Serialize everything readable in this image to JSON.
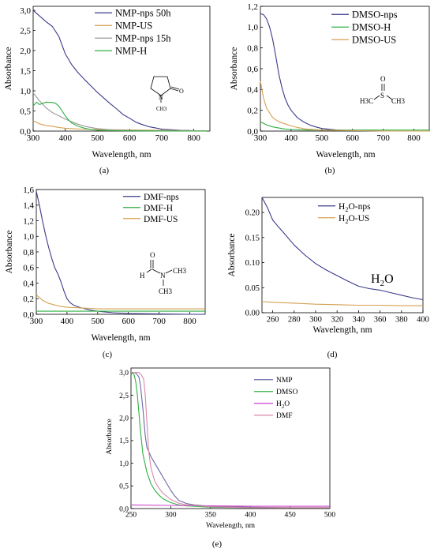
{
  "figure": {
    "panel_labels": [
      "(a)",
      "(b)",
      "(c)",
      "(d)",
      "(e)"
    ]
  },
  "chart_data": [
    {
      "id": "a",
      "type": "line",
      "xlabel": "Wavelength, nm",
      "ylabel": "Absorbance",
      "xlim": [
        300,
        850
      ],
      "ylim": [
        0,
        3.1
      ],
      "xticks": [
        300,
        400,
        500,
        600,
        700,
        800
      ],
      "yticks": [
        0.0,
        0.5,
        1.0,
        1.5,
        2.0,
        2.5,
        3.0
      ],
      "ytick_labels": [
        "0,0",
        "0,5",
        "1,0",
        "1,5",
        "2,0",
        "2,5",
        "3,0"
      ],
      "legend_position": "top-right",
      "molecule_labels": [
        "N",
        "O",
        "CH3"
      ],
      "series": [
        {
          "name": "NMP-nps 50h",
          "color": "#3a3a8c",
          "x": [
            300,
            320,
            340,
            360,
            380,
            400,
            420,
            440,
            460,
            480,
            500,
            520,
            540,
            560,
            580,
            600,
            620,
            640,
            660,
            680,
            700,
            720,
            740,
            760,
            780,
            800,
            820,
            840
          ],
          "y": [
            3.0,
            2.86,
            2.72,
            2.6,
            2.35,
            1.92,
            1.65,
            1.45,
            1.28,
            1.12,
            0.96,
            0.82,
            0.68,
            0.55,
            0.41,
            0.32,
            0.22,
            0.16,
            0.11,
            0.08,
            0.05,
            0.04,
            0.03,
            0.02,
            0.015,
            0.01,
            0.01,
            0.01
          ]
        },
        {
          "name": "NMP-US",
          "color": "#d4a050",
          "x": [
            300,
            320,
            340,
            360,
            380,
            400,
            450,
            500,
            600,
            700,
            800,
            840
          ],
          "y": [
            0.26,
            0.18,
            0.14,
            0.12,
            0.09,
            0.07,
            0.05,
            0.04,
            0.03,
            0.02,
            0.01,
            0.01
          ]
        },
        {
          "name": "NMP-nps 15h",
          "color": "#999999",
          "x": [
            300,
            320,
            340,
            360,
            380,
            400,
            420,
            440,
            460,
            480,
            500,
            550,
            600,
            700,
            800,
            840
          ],
          "y": [
            0.95,
            0.75,
            0.58,
            0.46,
            0.38,
            0.3,
            0.23,
            0.17,
            0.12,
            0.09,
            0.06,
            0.03,
            0.02,
            0.01,
            0.005,
            0.005
          ]
        },
        {
          "name": "NMP-H",
          "color": "#2db040",
          "x": [
            300,
            310,
            320,
            340,
            360,
            370,
            380,
            390,
            400,
            410,
            420,
            440,
            460,
            480,
            500,
            550,
            600,
            700,
            800,
            840
          ],
          "y": [
            0.62,
            0.72,
            0.66,
            0.72,
            0.71,
            0.69,
            0.62,
            0.5,
            0.38,
            0.28,
            0.2,
            0.12,
            0.07,
            0.04,
            0.02,
            0.01,
            0.005,
            0.0,
            0.0,
            0.0
          ]
        }
      ]
    },
    {
      "id": "b",
      "type": "line",
      "xlabel": "Wavelength, nm",
      "ylabel": "Absorbance",
      "xlim": [
        300,
        850
      ],
      "ylim": [
        0,
        1.2
      ],
      "xticks": [
        300,
        400,
        500,
        600,
        700,
        800
      ],
      "yticks": [
        0.0,
        0.2,
        0.4,
        0.6,
        0.8,
        1.0,
        1.2
      ],
      "ytick_labels": [
        "0,0",
        "0,2",
        "0,4",
        "0,6",
        "0,8",
        "1,0",
        "1,2"
      ],
      "legend_position": "top-right",
      "molecule_labels": [
        "O",
        "S",
        "H3C",
        "CH3"
      ],
      "series": [
        {
          "name": "DMSO-nps",
          "color": "#3a3a8c",
          "x": [
            300,
            310,
            320,
            330,
            340,
            350,
            360,
            370,
            380,
            390,
            400,
            420,
            440,
            460,
            480,
            500,
            550,
            600,
            700,
            800,
            850
          ],
          "y": [
            1.13,
            1.12,
            1.08,
            1.0,
            0.88,
            0.72,
            0.55,
            0.42,
            0.32,
            0.25,
            0.2,
            0.13,
            0.09,
            0.06,
            0.04,
            0.025,
            0.01,
            0.005,
            0.0,
            0.0,
            0.0
          ]
        },
        {
          "name": "DMSO-H",
          "color": "#2db040",
          "x": [
            300,
            320,
            340,
            360,
            380,
            400,
            450,
            500,
            600,
            700,
            800,
            850
          ],
          "y": [
            0.09,
            0.06,
            0.04,
            0.03,
            0.02,
            0.015,
            0.01,
            0.01,
            0.01,
            0.01,
            0.01,
            0.01
          ]
        },
        {
          "name": "DMSO-US",
          "color": "#d4a050",
          "x": [
            300,
            310,
            320,
            340,
            360,
            380,
            400,
            420,
            450,
            500,
            600,
            700,
            800,
            850
          ],
          "y": [
            0.48,
            0.32,
            0.22,
            0.13,
            0.09,
            0.07,
            0.05,
            0.035,
            0.02,
            0.01,
            0.005,
            0.0,
            0.0,
            0.0
          ]
        }
      ]
    },
    {
      "id": "c",
      "type": "line",
      "xlabel": "Wavelength, nm",
      "ylabel": "Absorbance",
      "xlim": [
        300,
        850
      ],
      "ylim": [
        0,
        1.6
      ],
      "xticks": [
        300,
        400,
        500,
        600,
        700,
        800
      ],
      "yticks": [
        0.0,
        0.2,
        0.4,
        0.6,
        0.8,
        1.0,
        1.2,
        1.4,
        1.6
      ],
      "ytick_labels": [
        "0,0",
        "0,2",
        "0,4",
        "0,6",
        "0,8",
        "1,0",
        "1,2",
        "1,4",
        "1,6"
      ],
      "legend_position": "top-right",
      "molecule_labels": [
        "O",
        "H",
        "N",
        "CH3",
        "CH3"
      ],
      "series": [
        {
          "name": "DMF-nps",
          "color": "#3a3a8c",
          "x": [
            300,
            310,
            320,
            330,
            340,
            350,
            360,
            370,
            380,
            390,
            400,
            410,
            420,
            440,
            460,
            480,
            500,
            550,
            600,
            700,
            800,
            850
          ],
          "y": [
            1.58,
            1.4,
            1.2,
            1.02,
            0.86,
            0.72,
            0.6,
            0.52,
            0.42,
            0.3,
            0.2,
            0.15,
            0.12,
            0.09,
            0.07,
            0.05,
            0.04,
            0.02,
            0.01,
            0.005,
            0.0,
            0.0
          ]
        },
        {
          "name": "DMF-H",
          "color": "#2db040",
          "x": [
            300,
            400,
            500,
            600,
            700,
            800,
            850
          ],
          "y": [
            0.04,
            0.04,
            0.04,
            0.04,
            0.04,
            0.04,
            0.04
          ]
        },
        {
          "name": "DMF-US",
          "color": "#d4a050",
          "x": [
            300,
            320,
            340,
            360,
            380,
            400,
            450,
            500,
            600,
            700,
            800,
            850
          ],
          "y": [
            0.25,
            0.18,
            0.14,
            0.12,
            0.1,
            0.09,
            0.08,
            0.07,
            0.07,
            0.07,
            0.07,
            0.07
          ]
        }
      ]
    },
    {
      "id": "d",
      "type": "line",
      "xlabel": "Wavelength, nm",
      "ylabel": "Absorbance",
      "xlim": [
        250,
        400
      ],
      "ylim": [
        0,
        0.23
      ],
      "xticks": [
        260,
        280,
        300,
        320,
        340,
        360,
        380,
        400
      ],
      "yticks": [
        0.0,
        0.05,
        0.1,
        0.15,
        0.2
      ],
      "ytick_labels": [
        "0.00",
        "0.05",
        "0.10",
        "0.15",
        "0.20"
      ],
      "legend_position": "top-right",
      "annotation": "H2O",
      "series": [
        {
          "name": "H2O-nps",
          "color": "#3a3a8c",
          "x": [
            250,
            255,
            260,
            265,
            270,
            280,
            290,
            300,
            310,
            320,
            330,
            340,
            350,
            360,
            370,
            380,
            390,
            400
          ],
          "y": [
            0.23,
            0.21,
            0.185,
            0.172,
            0.16,
            0.135,
            0.115,
            0.098,
            0.085,
            0.074,
            0.063,
            0.053,
            0.048,
            0.045,
            0.04,
            0.035,
            0.03,
            0.026
          ]
        },
        {
          "name": "H2O-US",
          "color": "#d4a050",
          "x": [
            250,
            260,
            280,
            300,
            320,
            340,
            360,
            380,
            400
          ],
          "y": [
            0.022,
            0.021,
            0.019,
            0.017,
            0.016,
            0.015,
            0.015,
            0.014,
            0.014
          ]
        }
      ]
    },
    {
      "id": "e",
      "type": "line",
      "xlabel": "Wavelength, nm",
      "ylabel": "Absorbance",
      "xlim": [
        250,
        500
      ],
      "ylim": [
        0,
        3.1
      ],
      "xticks": [
        250,
        300,
        350,
        400,
        450,
        500
      ],
      "yticks": [
        0.0,
        0.5,
        1.0,
        1.5,
        2.0,
        2.5,
        3.0
      ],
      "ytick_labels": [
        "0,0",
        "0,5",
        "1,0",
        "1,5",
        "2,0",
        "2,5",
        "3,0"
      ],
      "legend_position": "top-right",
      "series": [
        {
          "name": "NMP",
          "color": "#6a6aa8",
          "x": [
            250,
            255,
            258,
            260,
            262,
            265,
            268,
            270,
            275,
            280,
            285,
            290,
            295,
            300,
            305,
            310,
            320,
            330,
            350,
            400,
            450,
            500
          ],
          "y": [
            3.0,
            3.0,
            2.95,
            2.9,
            2.7,
            2.2,
            1.6,
            1.35,
            1.15,
            1.0,
            0.85,
            0.7,
            0.55,
            0.4,
            0.28,
            0.18,
            0.11,
            0.08,
            0.05,
            0.03,
            0.02,
            0.02
          ]
        },
        {
          "name": "DMSO",
          "color": "#2db040",
          "x": [
            250,
            252,
            254,
            256,
            258,
            260,
            262,
            265,
            270,
            275,
            280,
            285,
            290,
            300,
            310,
            320,
            350,
            400,
            450,
            500
          ],
          "y": [
            2.95,
            3.0,
            2.95,
            2.8,
            2.5,
            2.1,
            1.7,
            1.2,
            0.8,
            0.55,
            0.4,
            0.3,
            0.22,
            0.13,
            0.08,
            0.06,
            0.03,
            0.02,
            0.02,
            0.02
          ]
        },
        {
          "name": "H2O",
          "color": "#cc44cc",
          "x": [
            250,
            300,
            350,
            400,
            450,
            500
          ],
          "y": [
            0.08,
            0.07,
            0.06,
            0.05,
            0.05,
            0.05
          ]
        },
        {
          "name": "DMF",
          "color": "#d888a8",
          "x": [
            250,
            255,
            260,
            263,
            266,
            268,
            270,
            272,
            275,
            280,
            285,
            290,
            300,
            310,
            320,
            350,
            400,
            450,
            500
          ],
          "y": [
            3.0,
            3.0,
            3.0,
            2.95,
            2.85,
            2.5,
            1.9,
            1.3,
            0.9,
            0.6,
            0.45,
            0.34,
            0.2,
            0.12,
            0.08,
            0.04,
            0.02,
            0.02,
            0.02
          ]
        }
      ]
    }
  ]
}
